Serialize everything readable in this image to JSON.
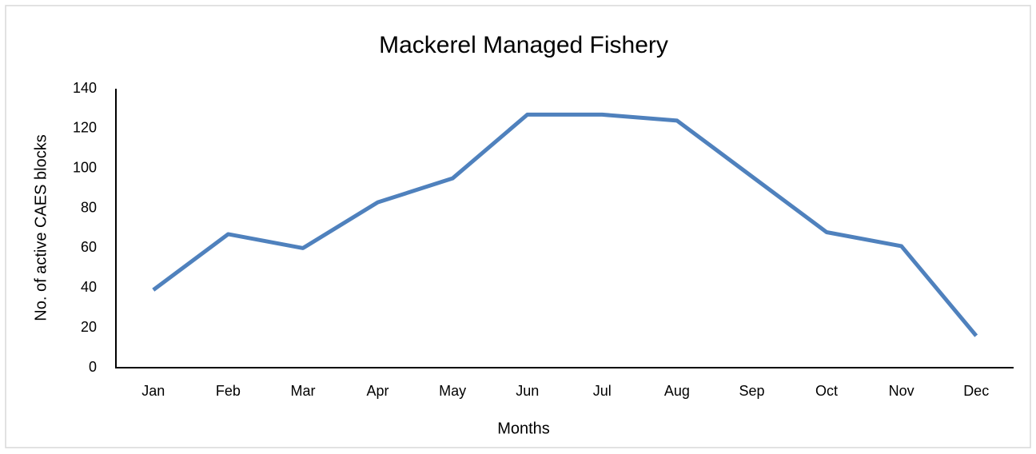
{
  "chart_data": {
    "type": "line",
    "title": "Mackerel Managed Fishery",
    "x_label": "Months",
    "y_label": "No. of active CAES blocks",
    "categories": [
      "Jan",
      "Feb",
      "Mar",
      "Apr",
      "May",
      "Jun",
      "Jul",
      "Aug",
      "Sep",
      "Oct",
      "Nov",
      "Dec"
    ],
    "series": [
      {
        "name": "Active CAES blocks",
        "color": "#4f81bd",
        "values": [
          39,
          67,
          60,
          83,
          95,
          127,
          127,
          124,
          96,
          68,
          61,
          16
        ]
      }
    ],
    "ylim": [
      0,
      140
    ],
    "yticks": [
      0,
      20,
      40,
      60,
      80,
      100,
      120,
      140
    ],
    "grid": false,
    "legend": false
  }
}
